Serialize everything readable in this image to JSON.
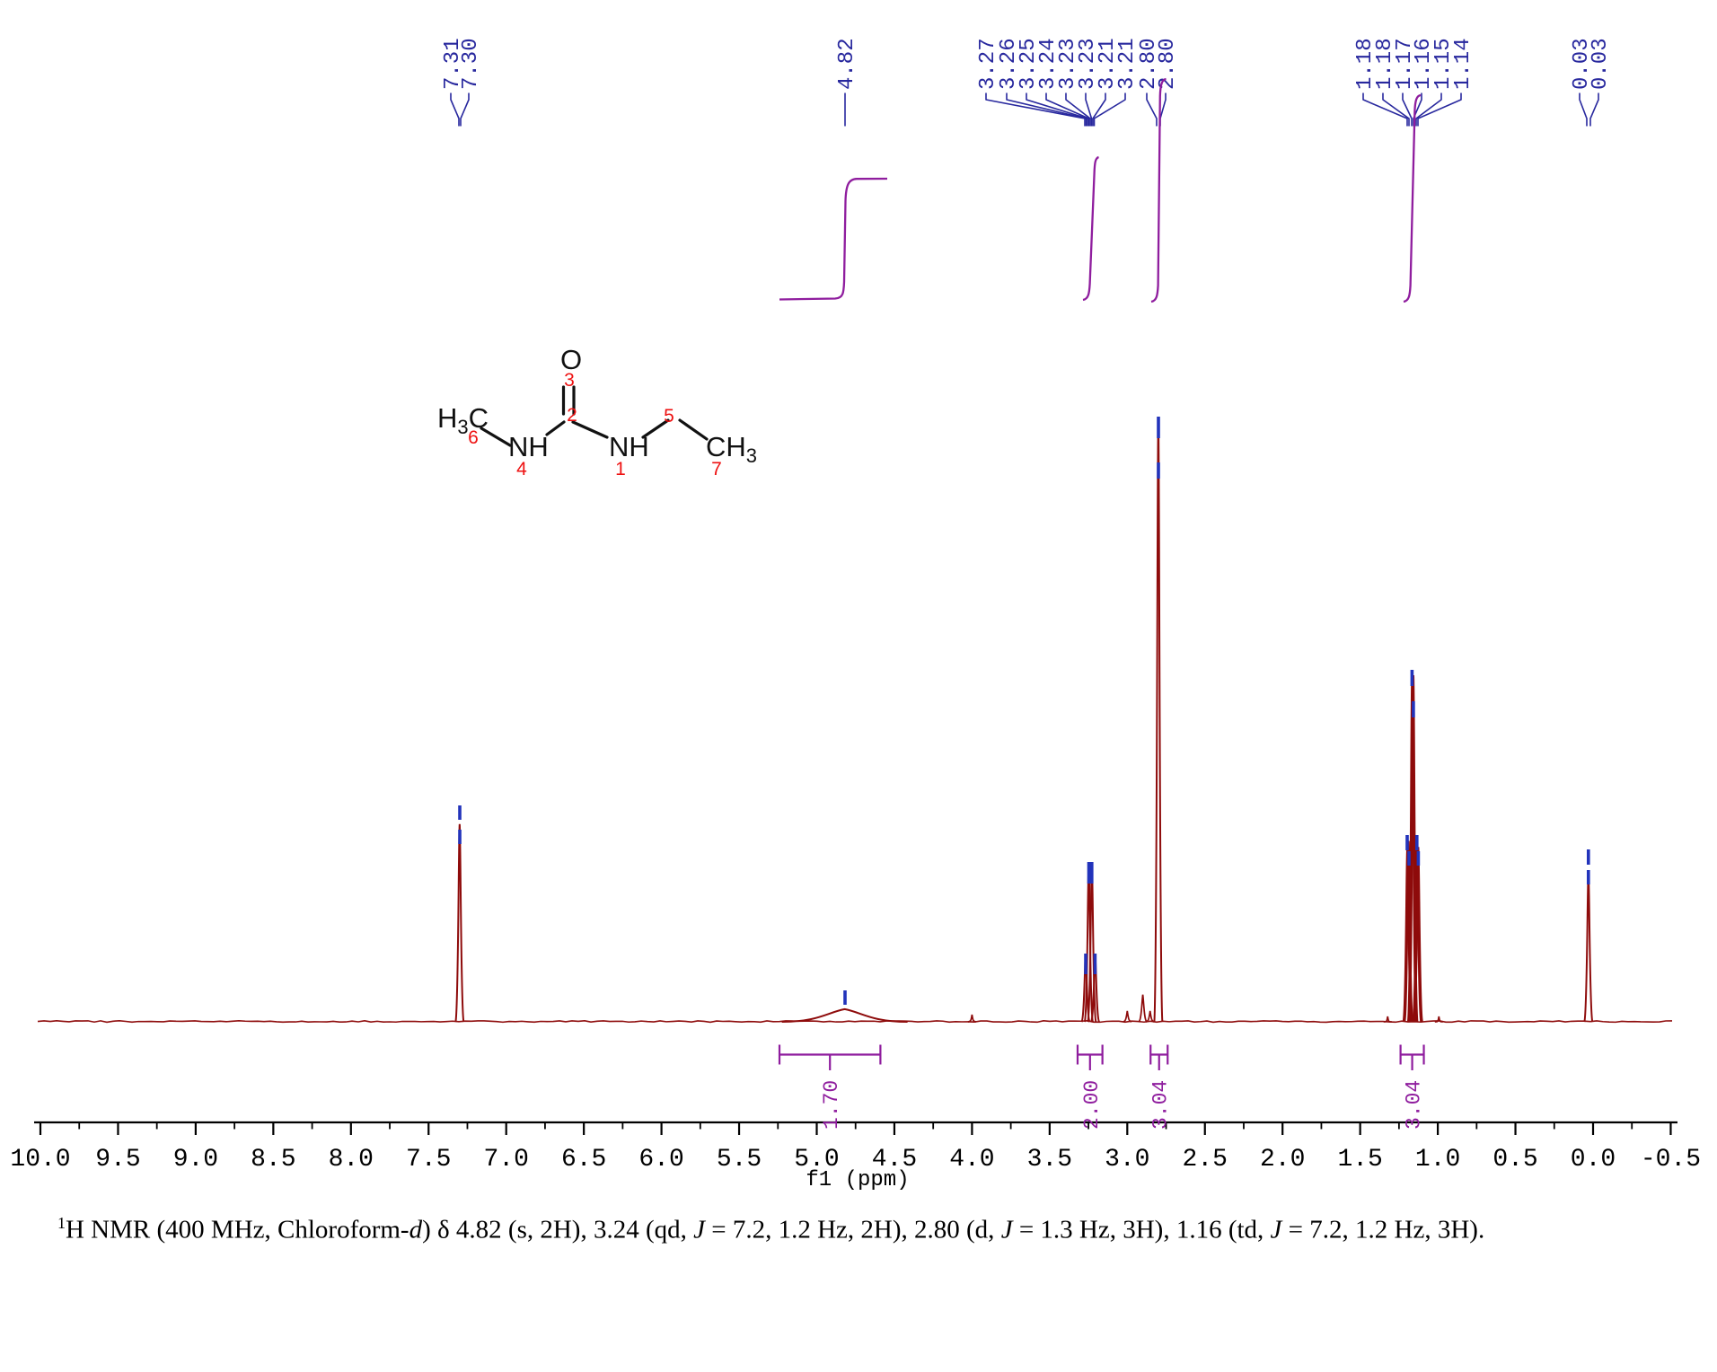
{
  "caption": {
    "segments": [
      {
        "t": "1",
        "sup": true
      },
      {
        "t": "H NMR (400 MHz, Chloroform-"
      },
      {
        "t": "d",
        "italic": true
      },
      {
        "t": ") δ 4.82 (s, 2H), 3.24 (qd, "
      },
      {
        "t": "J",
        "italic": true
      },
      {
        "t": " = 7.2, 1.2 Hz, 2H), 2.80 (d, "
      },
      {
        "t": "J",
        "italic": true
      },
      {
        "t": " = 1.3 Hz, 3H), 1.16 (td, "
      },
      {
        "t": "J",
        "italic": true
      },
      {
        "t": " = 7.2, 1.2 Hz, 3H)."
      }
    ]
  },
  "molecule": {
    "atoms": [
      "H3C",
      "NH",
      "O",
      "NH",
      "CH3"
    ],
    "numbers": [
      "6",
      "4",
      "3",
      "2",
      "1",
      "5",
      "7"
    ]
  },
  "chart_data": {
    "type": "line",
    "xlabel": "f1 (ppm)",
    "x_axis": {
      "min": -0.5,
      "max": 10.0,
      "major_tick_step": 0.5,
      "minor_tick_step": 0.25,
      "tick_labels": [
        "10.0",
        "9.5",
        "9.0",
        "8.5",
        "8.0",
        "7.5",
        "7.0",
        "6.5",
        "6.0",
        "5.5",
        "5.0",
        "4.5",
        "4.0",
        "3.5",
        "3.0",
        "2.5",
        "2.0",
        "1.5",
        "1.0",
        "0.5",
        "0.0",
        "-0.5"
      ]
    },
    "peak_groups": [
      {
        "name": "chloroform-solvent",
        "pick_labels": [
          "7.31",
          "7.30"
        ],
        "lines": [
          {
            "ppm": 7.3,
            "intensity": 0.328
          }
        ]
      },
      {
        "name": "nh-broad-singlet",
        "pick_labels": [
          "4.82"
        ],
        "lines": [
          {
            "ppm": 4.82,
            "intensity": 0.021,
            "broad": true
          }
        ]
      },
      {
        "name": "ch2-quartet-of-doublets",
        "pick_labels": [
          "3.27",
          "3.26",
          "3.25",
          "3.24",
          "3.23",
          "3.23",
          "3.21",
          "3.21"
        ],
        "lines": [
          {
            "ppm": 3.268,
            "intensity": 0.112
          },
          {
            "ppm": 3.248,
            "intensity": 0.261
          },
          {
            "ppm": 3.228,
            "intensity": 0.261
          },
          {
            "ppm": 3.207,
            "intensity": 0.112
          }
        ]
      },
      {
        "name": "nch3-doublet",
        "pick_labels": [
          "2.80",
          "2.80"
        ],
        "lines": [
          {
            "ppm": 2.8,
            "intensity": 1.0
          }
        ]
      },
      {
        "name": "ch3-triplet-of-doublets",
        "pick_labels": [
          "1.18",
          "1.18",
          "1.17",
          "1.16",
          "1.15",
          "1.14"
        ],
        "lines": [
          {
            "ppm": 1.1965,
            "intensity": 0.29
          },
          {
            "ppm": 1.1875,
            "intensity": 0.3
          },
          {
            "ppm": 1.166,
            "intensity": 0.575
          },
          {
            "ppm": 1.157,
            "intensity": 0.575
          },
          {
            "ppm": 1.1345,
            "intensity": 0.3
          },
          {
            "ppm": 1.1255,
            "intensity": 0.29
          }
        ]
      },
      {
        "name": "tms-reference",
        "pick_labels": [
          "0.03",
          "0.03"
        ],
        "lines": [
          {
            "ppm": 0.03,
            "intensity": 0.247
          }
        ]
      }
    ],
    "minor_peaks": [
      {
        "ppm": 4.0,
        "intensity": 0.012
      },
      {
        "ppm": 3.0,
        "intensity": 0.018
      },
      {
        "ppm": 2.9,
        "intensity": 0.045
      },
      {
        "ppm": 2.853,
        "intensity": 0.018
      },
      {
        "ppm": 1.323,
        "intensity": 0.009
      },
      {
        "ppm": 0.993,
        "intensity": 0.009
      }
    ],
    "integrals": [
      {
        "value": "1.70",
        "ppm_from": 5.24,
        "ppm_to": 4.59
      },
      {
        "value": "2.00",
        "ppm_from": 3.32,
        "ppm_to": 3.16
      },
      {
        "value": "3.04",
        "ppm_from": 2.85,
        "ppm_to": 2.74
      },
      {
        "value": "3.04",
        "ppm_from": 1.24,
        "ppm_to": 1.09
      }
    ],
    "colors": {
      "spectrum": "#8e0b0b",
      "peak_marks": "#2233bb",
      "labels": "#28289e",
      "integral": "#8f1d9e",
      "axis": "#000000",
      "structure": "#111111",
      "atom_numbers": "#ee1111"
    }
  }
}
